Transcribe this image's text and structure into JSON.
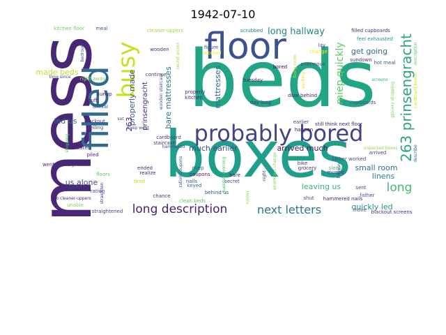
{
  "title": "1942-07-10",
  "colors": {
    "dark_purple": "#440154",
    "indigo": "#443983",
    "blue": "#31688e",
    "teal": "#21918c",
    "green": "#35b779",
    "lime": "#90d743",
    "yellow": "#fde725"
  },
  "words": [
    {
      "text": "mess",
      "color": "#482777"
    },
    {
      "text": "beds",
      "color": "#21a585"
    },
    {
      "text": "boxes",
      "color": "#1f9e89"
    },
    {
      "text": "filled",
      "color": "#2f6b8e"
    },
    {
      "text": "floor",
      "color": "#3b528b"
    },
    {
      "text": "busy",
      "color": "#c8e020"
    },
    {
      "text": "probably bored",
      "color": "#414487"
    },
    {
      "text": "263 prinsengracht",
      "color": "#2ea37f"
    },
    {
      "text": "long description",
      "color": "#482071"
    },
    {
      "text": "next letters",
      "color": "#2a788e"
    },
    {
      "text": "long",
      "color": "#3dbc74"
    },
    {
      "text": "long hallway",
      "color": "#24868e"
    },
    {
      "text": "miep quickly",
      "color": "#5ec962"
    },
    {
      "text": "bare mattresses",
      "color": "#2c728e"
    },
    {
      "text": "made beds",
      "color": "#bddf26"
    },
    {
      "text": "properly made",
      "color": "#3b528b"
    },
    {
      "text": "get going",
      "color": "#31688e"
    },
    {
      "text": "prinsengracht",
      "color": "#472c7a"
    },
    {
      "text": "mattresses",
      "color": "#31668e"
    },
    {
      "text": "much earlier",
      "color": "#3e4c8a"
    },
    {
      "text": "arrived much",
      "color": "#471063"
    },
    {
      "text": "small room",
      "color": "#2e6e8e"
    },
    {
      "text": "linens",
      "color": "#26828e"
    },
    {
      "text": "leaving us",
      "color": "#35b779"
    },
    {
      "text": "quickly led",
      "color": "#21918c"
    },
    {
      "text": "us alone",
      "color": "#3f4788"
    },
    {
      "text": "led us",
      "color": "#2d708e"
    },
    {
      "text": "263",
      "color": "#48186a"
    },
    {
      "text": "kitchen floor",
      "color": "#6ccd5a"
    },
    {
      "text": "meal",
      "color": "#38598c"
    },
    {
      "text": "cleaner-uppers",
      "color": "#a2da37"
    },
    {
      "text": "scrubbed",
      "color": "#2a788e"
    },
    {
      "text": "filled cupboards",
      "color": "#472f7d"
    },
    {
      "text": "feel exhausted",
      "color": "#1f988b"
    },
    {
      "text": "wooden staircase",
      "color": "#3b528b"
    },
    {
      "text": "secret annex",
      "color": "#9bd93c"
    },
    {
      "text": "figure",
      "color": "#3c4f8a"
    },
    {
      "text": "worked",
      "color": "#fde725"
    },
    {
      "text": "lay",
      "color": "#443a83"
    },
    {
      "text": "change",
      "color": "#fde725"
    },
    {
      "text": "bored",
      "color": "#440154"
    },
    {
      "text": "enormous",
      "color": "#3f4889"
    },
    {
      "text": "sundown",
      "color": "#46327e"
    },
    {
      "text": "hot meal",
      "color": "#375b8d"
    },
    {
      "text": "continue",
      "color": "#443983"
    },
    {
      "text": "time since",
      "color": "#3e4a89"
    },
    {
      "text": "right away",
      "color": "#84d44b"
    },
    {
      "text": "tuesday",
      "color": "#481467"
    },
    {
      "text": "properly",
      "color": "#472a7a"
    },
    {
      "text": "kitchen",
      "color": "#481f70"
    },
    {
      "text": "day long",
      "color": "#46307e"
    },
    {
      "text": "door behind",
      "color": "#481b6d"
    },
    {
      "text": "living room",
      "color": "#bade28"
    },
    {
      "text": "exciting",
      "color": "#e5e419"
    },
    {
      "text": "cupboards",
      "color": "#39568c"
    },
    {
      "text": "grocery shopping",
      "color": "#7ad151"
    },
    {
      "text": "cardboard boxes",
      "color": "#d2e21b"
    },
    {
      "text": "screens",
      "color": "#2db27d"
    },
    {
      "text": "sunup",
      "color": "#48186a"
    },
    {
      "text": "stuff",
      "color": "#471365"
    },
    {
      "text": "arrival",
      "color": "#38598c"
    },
    {
      "text": "blackout",
      "color": "#46337e"
    },
    {
      "text": "ceiling",
      "color": "#3b528b"
    },
    {
      "text": "miep went",
      "color": "#3a538b"
    },
    {
      "text": "still think next floor",
      "color": "#482475"
    },
    {
      "text": "happen",
      "color": "#471063"
    },
    {
      "text": "earlier",
      "color": "#424086"
    },
    {
      "text": "unpacked boxes",
      "color": "#95d840"
    },
    {
      "text": "arrived",
      "color": "#3e4c8a"
    },
    {
      "text": "shopping",
      "color": "#4ac16d"
    },
    {
      "text": "cardboard",
      "color": "#433e85"
    },
    {
      "text": "staircase",
      "color": "#46327e"
    },
    {
      "text": "hammered",
      "color": "#3e4989"
    },
    {
      "text": "eaten",
      "color": "#45337d"
    },
    {
      "text": "piled",
      "color": "#481d6f"
    },
    {
      "text": "went grocery",
      "color": "#472d7b"
    },
    {
      "text": "realize",
      "color": "#482878"
    },
    {
      "text": "ended",
      "color": "#46307e"
    },
    {
      "text": "ration coupons",
      "color": "#3c508b"
    },
    {
      "text": "miep",
      "color": "#375a8c"
    },
    {
      "text": "coupons",
      "color": "#471164"
    },
    {
      "text": "keyed",
      "color": "#2a788e"
    },
    {
      "text": "tuesday morning",
      "color": "#48c16e"
    },
    {
      "text": "bare",
      "color": "#481769"
    },
    {
      "text": "night",
      "color": "#423f85"
    },
    {
      "text": "rooms",
      "color": "#8fd744"
    },
    {
      "text": "enormous change",
      "color": "#7ad151"
    },
    {
      "text": "hallway",
      "color": "#3d4e8a"
    },
    {
      "text": "bike",
      "color": "#472d7b"
    },
    {
      "text": "sleep",
      "color": "#48c16e"
    },
    {
      "text": "muscle",
      "color": "#424186"
    },
    {
      "text": "father worked",
      "color": "#3d4d8a"
    },
    {
      "text": "describe",
      "color": "#31688e"
    },
    {
      "text": "sent",
      "color": "#3d4d8a"
    },
    {
      "text": "hammered nails",
      "color": "#482374"
    },
    {
      "text": "floors",
      "color": "#5cc863"
    },
    {
      "text": "clean",
      "color": "#424186"
    },
    {
      "text": "ration",
      "color": "#3e4a89"
    },
    {
      "text": "two cleaner-uppers",
      "color": "#482475"
    },
    {
      "text": "unable",
      "color": "#7ad151"
    },
    {
      "text": "straighten",
      "color": "#46337f"
    },
    {
      "text": "straightened",
      "color": "#414487"
    },
    {
      "text": "chance",
      "color": "#46327e"
    },
    {
      "text": "clean beds",
      "color": "#58c765"
    },
    {
      "text": "behind us",
      "color": "#3b518b"
    },
    {
      "text": "nails",
      "color": "#3e4a89"
    },
    {
      "text": "secret",
      "color": "#3d4e8a"
    },
    {
      "text": "grocery",
      "color": "#482979"
    },
    {
      "text": "shut",
      "color": "#3e4989"
    },
    {
      "text": "move",
      "color": "#3b528b"
    },
    {
      "text": "blackout screens",
      "color": "#46307e"
    },
    {
      "text": "tired",
      "color": "#c0df25"
    },
    {
      "text": "wooden",
      "color": "#472e7c"
    },
    {
      "text": "bedroom",
      "color": "#3f4889"
    },
    {
      "text": "description",
      "color": "#5ec962"
    },
    {
      "text": "father",
      "color": "#3d4d8a"
    },
    {
      "text": "sat",
      "color": "#3b528b"
    }
  ]
}
